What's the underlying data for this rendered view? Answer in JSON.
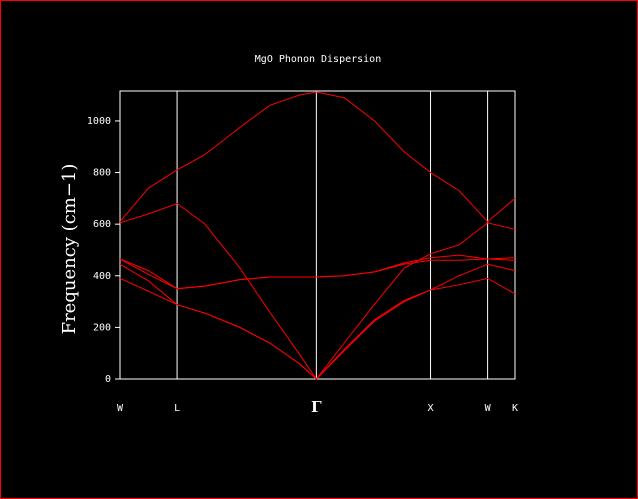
{
  "chart_data": {
    "type": "line",
    "title": "MgO Phonon Dispersion",
    "y_label": "Frequency (cm−1)",
    "x": [
      0,
      0.25,
      0.5,
      0.745,
      1.05,
      1.31,
      1.57,
      1.72,
      1.965,
      2.23,
      2.49,
      2.72,
      2.97,
      3.22,
      3.46
    ],
    "series": [
      {
        "color": "#ff0000",
        "values": [
          390,
          340,
          288,
          255,
          200,
          140,
          60,
          0,
          110,
          225,
          300,
          345,
          365,
          390,
          330
        ]
      },
      {
        "color": "#ff0000",
        "values": [
          445,
          380,
          288,
          255,
          200,
          140,
          60,
          0,
          115,
          230,
          305,
          345,
          400,
          445,
          420
        ]
      },
      {
        "color": "#ff0000",
        "values": [
          465,
          405,
          350,
          360,
          385,
          395,
          395,
          395,
          400,
          415,
          450,
          470,
          480,
          465,
          470
        ]
      },
      {
        "color": "#ff0000",
        "values": [
          465,
          420,
          350,
          360,
          385,
          395,
          395,
          395,
          400,
          415,
          445,
          460,
          460,
          465,
          460
        ]
      },
      {
        "color": "#ff0000",
        "values": [
          605,
          640,
          680,
          600,
          430,
          260,
          97,
          0,
          140,
          290,
          430,
          485,
          520,
          605,
          580
        ]
      },
      {
        "color": "#ff0000",
        "values": [
          610,
          740,
          810,
          870,
          975,
          1060,
          1100,
          1112,
          1090,
          1000,
          880,
          800,
          730,
          610,
          700
        ]
      }
    ],
    "xlim": [
      0,
      3.46
    ],
    "xticks": [
      {
        "value": 0,
        "label": "W"
      },
      {
        "value": 0.5,
        "label": "L"
      },
      {
        "value": 1.72,
        "label": "Γ"
      },
      {
        "value": 2.72,
        "label": "X"
      },
      {
        "value": 3.22,
        "label": "W"
      },
      {
        "value": 3.46,
        "label": "K"
      }
    ],
    "ylim": [
      0,
      1116
    ],
    "yticks": [
      0,
      200,
      400,
      600,
      800,
      1000
    ],
    "grid": true
  }
}
